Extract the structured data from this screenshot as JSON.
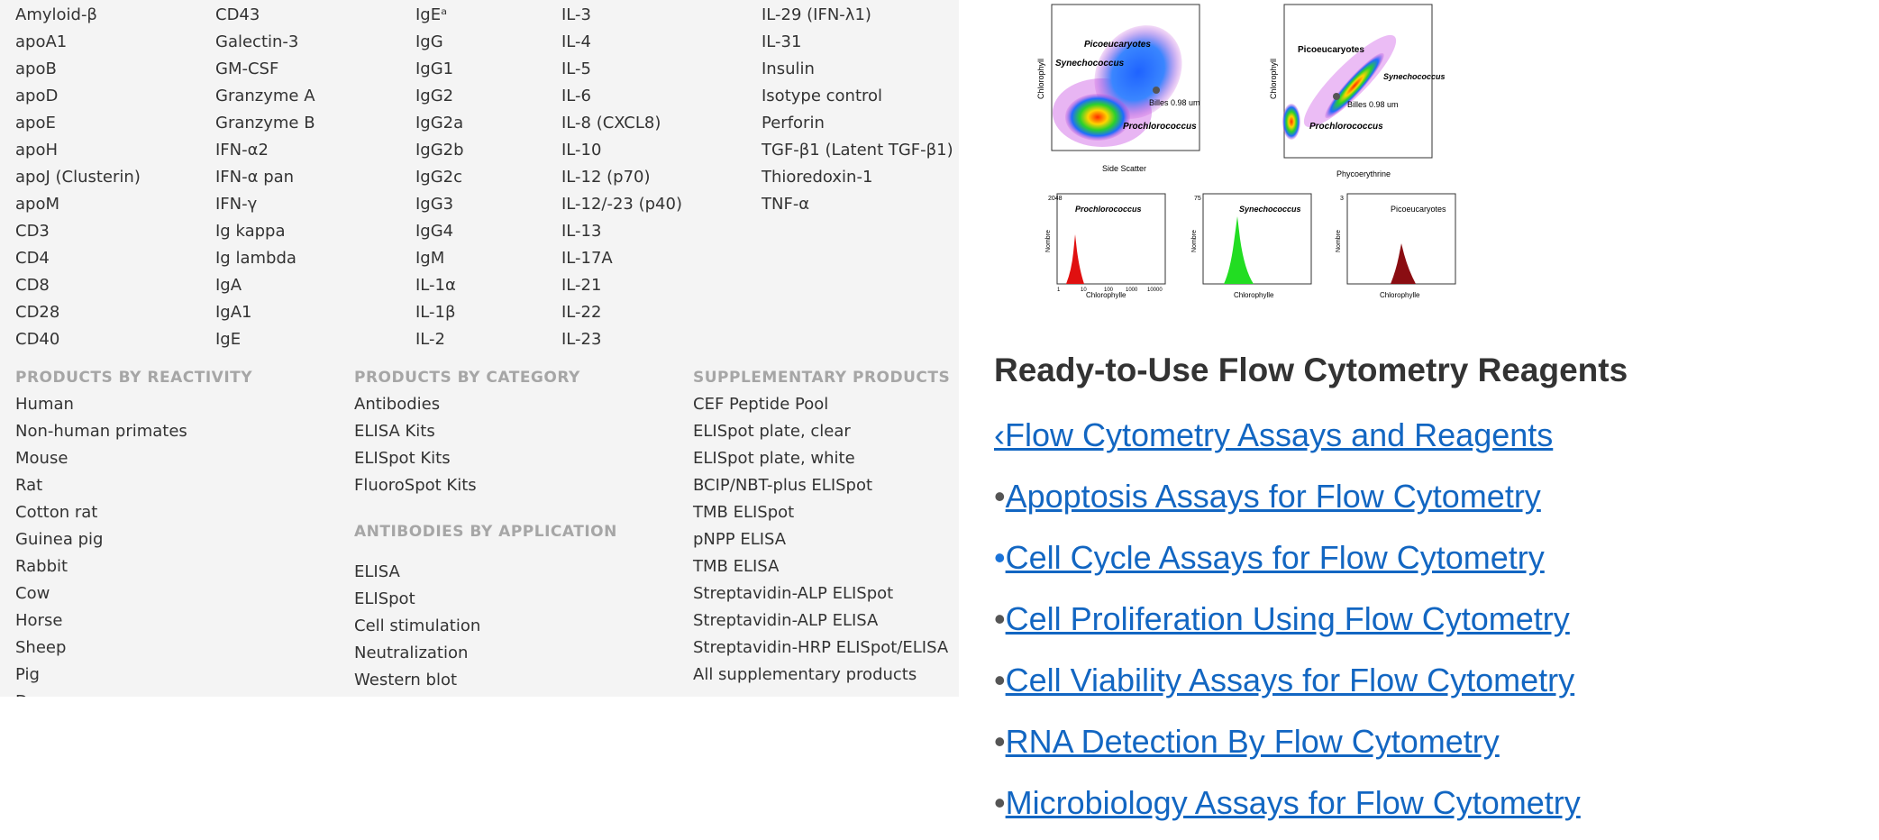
{
  "antigen_columns": [
    [
      "Amyloid-β",
      "apoA1",
      "apoB",
      "apoD",
      "apoE",
      "apoH",
      "apoJ (Clusterin)",
      "apoM",
      "CD3",
      "CD4",
      "CD8",
      "CD28",
      "CD40"
    ],
    [
      "CD43",
      "Galectin-3",
      "GM-CSF",
      "Granzyme A",
      "Granzyme B",
      "IFN-α2",
      "IFN-α pan",
      "IFN-γ",
      "Ig kappa",
      "Ig lambda",
      "IgA",
      "IgA1",
      "IgE"
    ],
    [
      "IgEᵃ",
      "IgG",
      "IgG1",
      "IgG2",
      "IgG2a",
      "IgG2b",
      "IgG2c",
      "IgG3",
      "IgG4",
      "IgM",
      "IL-1α",
      "IL-1β",
      "IL-2"
    ],
    [
      "IL-3",
      "IL-4",
      "IL-5",
      "IL-6",
      "IL-8 (CXCL8)",
      "IL-10",
      "IL-12 (p70)",
      "IL-12/-23 (p40)",
      "IL-13",
      "IL-17A",
      "IL-21",
      "IL-22",
      "IL-23"
    ],
    [
      "IL-29 (IFN-λ1)",
      "IL-31",
      "Insulin",
      "Isotype control",
      "Perforin",
      "TGF-β1 (Latent TGF-β1)",
      "Thioredoxin-1",
      "TNF-α"
    ]
  ],
  "reactivity": {
    "title": "PRODUCTS BY REACTIVITY",
    "items": [
      "Human",
      "Non-human primates",
      "Mouse",
      "Rat",
      "Cotton rat",
      "Guinea pig",
      "Rabbit",
      "Cow",
      "Horse",
      "Sheep",
      "Pig",
      "Dog"
    ]
  },
  "category": {
    "title": "PRODUCTS BY CATEGORY",
    "items": [
      "Antibodies",
      "ELISA Kits",
      "ELISpot Kits",
      "FluoroSpot Kits"
    ]
  },
  "application": {
    "title": "ANTIBODIES BY APPLICATION",
    "items": [
      "ELISA",
      "ELISpot",
      "Cell stimulation",
      "Neutralization",
      "Western blot"
    ]
  },
  "supplementary": {
    "title": "SUPPLEMENTARY PRODUCTS",
    "items": [
      "CEF Peptide Pool",
      "ELISpot plate, clear",
      "ELISpot plate, white",
      "BCIP/NBT-plus ELISpot",
      "TMB ELISpot",
      "pNPP ELISA",
      "TMB ELISA",
      "Streptavidin-ALP ELISpot",
      "Streptavidin-ALP ELISA",
      "Streptavidin-HRP ELISpot/ELISA",
      "All supplementary products"
    ]
  },
  "figure": {
    "scatter1": {
      "ylabel": "Chlorophyll",
      "xlabel": "Side Scatter",
      "labels": [
        "Picoeucaryotes",
        "Synechococcus",
        "Billes 0.98 um",
        "Prochlorococcus"
      ]
    },
    "scatter2": {
      "ylabel": "Chlorophyll",
      "xlabel": "Phycoerythrine",
      "labels": [
        "Picoeucaryotes",
        "Synechococcus",
        "Billes 0.98 um",
        "Prochlorococcus"
      ]
    },
    "hist1": {
      "title": "Prochlorococcus",
      "xlabel": "Chlorophylle",
      "ylabel": "Nombre",
      "ymax": "2048"
    },
    "hist2": {
      "title": "Synechococcus",
      "xlabel": "Chlorophylle",
      "ylabel": "Nombre",
      "ymax": "75"
    },
    "hist3": {
      "title": "Picoeucaryotes",
      "xlabel": "Chlorophylle",
      "ylabel": "Nombre",
      "ymax": "3"
    },
    "ticks": [
      "1",
      "10",
      "100",
      "1000",
      "10000"
    ]
  },
  "heading": "Ready-to-Use Flow Cytometry Reagents",
  "nav": {
    "back_marker": "‹",
    "back_label": "Flow Cytometry Assays and Reagents",
    "bullet": "•",
    "items": [
      "Apoptosis Assays for Flow Cytometry",
      "Cell Cycle Assays for Flow Cytometry",
      "Cell Proliferation Using Flow Cytometry",
      "Cell Viability Assays for Flow Cytometry",
      "RNA Detection By Flow Cytometry",
      "Microbiology Assays for Flow Cytometry"
    ]
  },
  "colors": {
    "link": "#1266c2",
    "panel_bg": "#f4f4f4",
    "section_title": "#a6a6a6",
    "active_bullet": "#1a73d9"
  }
}
